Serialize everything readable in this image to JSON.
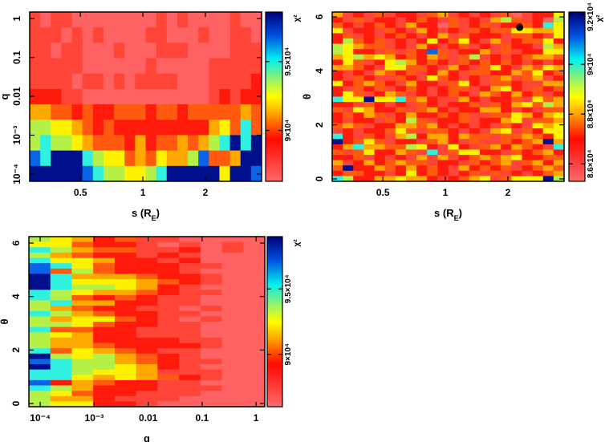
{
  "colormap": [
    "#ff6262",
    "#ff4438",
    "#ff1a0c",
    "#ff5a10",
    "#ffa800",
    "#fff200",
    "#b4f046",
    "#30f0e0",
    "#0a64e6",
    "#00108c"
  ],
  "chart_data": [
    {
      "type": "heatmap",
      "xlabel": {
        "text": "s (R",
        "sub": "E",
        "tail": ")"
      },
      "ylabel": "q",
      "xscale": "log",
      "yscale": "log",
      "xlim": [
        0.285,
        3.73
      ],
      "ylim": [
        6.5e-05,
        1.48
      ],
      "xticks": [
        {
          "value": 0.5,
          "label": "0.5"
        },
        {
          "value": 1,
          "label": "1"
        },
        {
          "value": 2,
          "label": "2"
        }
      ],
      "yticks": [
        {
          "value": 0.0001,
          "label": "10⁻⁴"
        },
        {
          "value": 0.001,
          "label": "10⁻³"
        },
        {
          "value": 0.01,
          "label": "0.01"
        },
        {
          "value": 0.1,
          "label": "0.1"
        },
        {
          "value": 1,
          "label": "1"
        }
      ],
      "colorbar": {
        "label": "χ²",
        "zlim": [
          86300,
          98600
        ],
        "ticks": [
          {
            "value": 90000,
            "label": "9×10⁴"
          },
          {
            "value": 95000,
            "label": "9.5×10⁴"
          }
        ]
      },
      "z_level_scale": [
        86300,
        98600
      ],
      "z_level_rows": [
        "1011000000001010000100",
        "1110101000011000100110",
        "1101100010001110000111",
        "1111100000010000011111",
        "1111011010111100011112",
        "2221100000000000012122",
        "4433232233323323333343",
        "6655432322222222245373",
        "6766543332423343467979",
        "8799976553435446833499",
        "9999987665567999995998"
      ]
    },
    {
      "type": "heatmap",
      "xlabel": {
        "text": "s (R",
        "sub": "E",
        "tail": ")"
      },
      "ylabel": "θ",
      "xscale": "log",
      "yscale": "linear",
      "xlim": [
        0.285,
        3.73
      ],
      "ylim": [
        -0.09,
        6.18
      ],
      "xticks": [
        {
          "value": 0.5,
          "label": "0.5"
        },
        {
          "value": 1,
          "label": "1"
        },
        {
          "value": 2,
          "label": "2"
        }
      ],
      "yticks": [
        {
          "value": 0,
          "label": "0"
        },
        {
          "value": 2,
          "label": "2"
        },
        {
          "value": 4,
          "label": "4"
        },
        {
          "value": 6,
          "label": "6"
        }
      ],
      "colorbar": {
        "label": "χ²",
        "zlim": [
          85300,
          92100
        ],
        "ticks": [
          {
            "value": 86000,
            "label": "8.6×10⁴"
          },
          {
            "value": 88000,
            "label": "8.8×10⁴"
          },
          {
            "value": 90000,
            "label": "9×10⁴"
          },
          {
            "value": 92000,
            "label": "9.2×10⁴"
          }
        ]
      },
      "best_fit_point": {
        "s": 2.28,
        "theta": 5.61
      },
      "z_level_scale": [
        85300,
        92100
      ],
      "z_level_rows": [
        "4121312213412121301225",
        "2131221232131214631206",
        "3212321422031231223275",
        "5122132142121323355445",
        "2312123212413222133215",
        "2632312125235214123352",
        "6543312142123121322164",
        "6522131328312241312255",
        "4564542324313612123443",
        "2531256423213232321212",
        "4432155332142135214354",
        "2121432312421332243523",
        "2132113215321213413412",
        "5234321422135213321144",
        "2132312321233124521323",
        "2531243121232143242312",
        "7559557342114212231534",
        "2213212132122313245364",
        "3154223134212244212133",
        "2324312422323113354245",
        "2122132631223122451334",
        "3431224434212121321545",
        "1212235313321214513255",
        "7213214624424331334325",
        "9235312213421311323494",
        "2474433652152134243217",
        "3135224317135522132342",
        "2231212141412343452233",
        "4124234331221323413424",
        "3922432423214232312343",
        "2332212523212313121234",
        "7622445442123451355596"
      ]
    },
    {
      "type": "heatmap",
      "xlabel": {
        "text": "q",
        "sub": "",
        "tail": ""
      },
      "ylabel": "θ",
      "xscale": "log",
      "yscale": "linear",
      "xlim": [
        6.17e-05,
        1.45
      ],
      "ylim": [
        -0.12,
        6.24
      ],
      "xticks": [
        {
          "value": 0.0001,
          "label": "10⁻⁴"
        },
        {
          "value": 0.001,
          "label": "10⁻³"
        },
        {
          "value": 0.01,
          "label": "0.01"
        },
        {
          "value": 0.1,
          "label": "0.1"
        },
        {
          "value": 1,
          "label": "1"
        }
      ],
      "yticks": [
        {
          "value": 0,
          "label": "0"
        },
        {
          "value": 2,
          "label": "2"
        },
        {
          "value": 4,
          "label": "4"
        },
        {
          "value": 6,
          "label": "6"
        }
      ],
      "colorbar": {
        "label": "χ²",
        "zlim": [
          86000,
          99000
        ],
        "ticks": [
          {
            "value": 90000,
            "label": "9×10⁴"
          },
          {
            "value": 95000,
            "label": "9.5×10⁴"
          }
        ]
      },
      "z_level_scale": [
        86000,
        99000
      ],
      "z_level_rows": [
        "65423110000",
        "55322101010",
        "76433112010",
        "64322121000",
        "75542212000",
        "87532221100",
        "83632221000",
        "97444322100",
        "97555432100",
        "97665421000",
        "76544321100",
        "76323211000",
        "67442211000",
        "64322110100",
        "76432211000",
        "64553210100",
        "66532211000",
        "73322111000",
        "65422111000",
        "64422221100",
        "64432222100",
        "73543211000",
        "96564321000",
        "87664321100",
        "97665421000",
        "77655411100",
        "77545432100",
        "82432211000",
        "76422211100",
        "65322111000",
        "64421110000",
        "65522100000"
      ]
    }
  ]
}
